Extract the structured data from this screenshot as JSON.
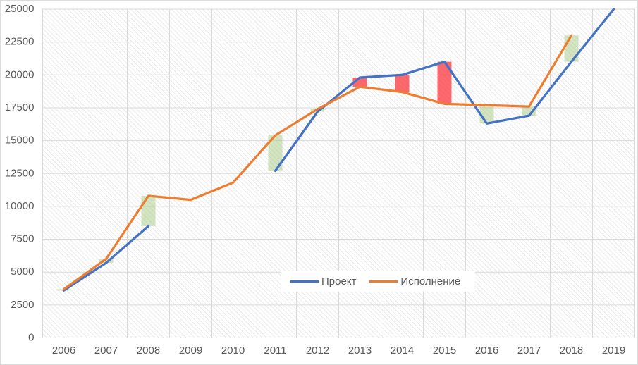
{
  "chart_data": {
    "type": "line",
    "title": "",
    "categories": [
      "2006",
      "2007",
      "2008",
      "2009",
      "2010",
      "2011",
      "2012",
      "2013",
      "2014",
      "2015",
      "2016",
      "2017",
      "2018",
      "2019"
    ],
    "series": [
      {
        "name": "Проект",
        "color": "#4472C4",
        "values": [
          3600,
          5700,
          8500,
          null,
          null,
          12700,
          17200,
          19800,
          20000,
          21000,
          16300,
          16900,
          21000,
          25000
        ]
      },
      {
        "name": "Исполнение",
        "color": "#ED7D31",
        "values": [
          3700,
          6000,
          10800,
          10500,
          11800,
          15400,
          17400,
          19100,
          18700,
          17800,
          17700,
          17600,
          23000,
          null
        ]
      }
    ],
    "updown_bars": {
      "up_color": "rgba(168, 204, 129, 0.50)",
      "down_color": "rgba(250, 62, 68, 0.78)",
      "note": "up bar (green) where Исполнение > Проект, down bar (red) where Проект > Исполнение"
    },
    "ylim": [
      0,
      25000
    ],
    "yticks": [
      "0",
      "2500",
      "5000",
      "7500",
      "10000",
      "12500",
      "15000",
      "17500",
      "20000",
      "22500",
      "25000"
    ],
    "grid": true,
    "plot_background": "light diagonal hatch",
    "legend_position": "bottom-center",
    "axis_text_color": "#595959"
  },
  "legend": {
    "items": [
      {
        "label": "Проект"
      },
      {
        "label": "Исполнение"
      }
    ]
  }
}
